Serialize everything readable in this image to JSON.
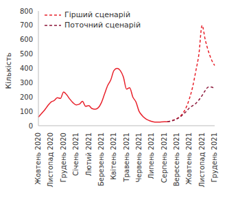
{
  "chart_data": {
    "type": "line",
    "y_label": "Кількість",
    "categories": [
      "Жовтень 2020",
      null,
      null,
      null,
      "Листопад 2020",
      null,
      null,
      null,
      "Грудень 2020",
      null,
      null,
      null,
      "Січень 2021",
      null,
      null,
      null,
      "Лютий 2021",
      null,
      null,
      null,
      "Березень 2021",
      null,
      null,
      null,
      "Квітень 2021",
      null,
      null,
      null,
      "Травень 2021",
      null,
      null,
      null,
      "Червень 2021",
      null,
      null,
      null,
      "Липень 2021",
      null,
      null,
      null,
      "Серпень 2021",
      null,
      null,
      null,
      "Вересень 2021",
      null,
      null,
      null,
      "Жовтень 2021",
      null,
      null,
      null,
      "Листопад 2021",
      null,
      null,
      null,
      "Грудень 2021"
    ],
    "series": [
      {
        "color": "#e8202a",
        "line_style": "solid",
        "values": [
          60,
          85,
          110,
          140,
          165,
          175,
          195,
          190,
          235,
          215,
          185,
          160,
          145,
          150,
          170,
          135,
          140,
          120,
          115,
          125,
          160,
          220,
          280,
          320,
          385,
          400,
          385,
          340,
          255,
          265,
          200,
          165,
          100,
          70,
          50,
          38,
          30,
          25,
          25,
          26,
          27,
          28,
          null,
          null,
          null,
          null,
          null,
          null,
          null,
          null,
          null,
          null,
          null,
          null,
          null,
          null,
          null
        ]
      },
      {
        "name": "Гірший сценарій",
        "color": "#e8202a",
        "line_style": "dashed",
        "values": [
          null,
          null,
          null,
          null,
          null,
          null,
          null,
          null,
          null,
          null,
          null,
          null,
          null,
          null,
          null,
          null,
          null,
          null,
          null,
          null,
          null,
          null,
          null,
          null,
          null,
          null,
          null,
          null,
          null,
          null,
          null,
          null,
          null,
          null,
          null,
          null,
          null,
          null,
          null,
          null,
          null,
          28,
          32,
          40,
          50,
          65,
          90,
          130,
          190,
          270,
          380,
          500,
          700,
          600,
          520,
          460,
          420
        ]
      },
      {
        "name": "Поточний сценарій",
        "color": "#8a1538",
        "line_style": "dashed",
        "values": [
          null,
          null,
          null,
          null,
          null,
          null,
          null,
          null,
          null,
          null,
          null,
          null,
          null,
          null,
          null,
          null,
          null,
          null,
          null,
          null,
          null,
          null,
          null,
          null,
          null,
          null,
          null,
          null,
          null,
          null,
          null,
          null,
          null,
          null,
          null,
          null,
          null,
          null,
          null,
          null,
          null,
          28,
          32,
          38,
          48,
          60,
          80,
          100,
          125,
          140,
          155,
          180,
          210,
          245,
          270,
          270,
          255
        ]
      }
    ],
    "ylim": [
      0,
      800
    ],
    "yticks": [
      0,
      100,
      200,
      300,
      400,
      500,
      600,
      700,
      800
    ],
    "legend": "top-left",
    "grid": false
  }
}
